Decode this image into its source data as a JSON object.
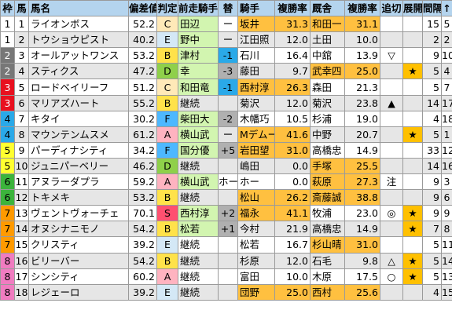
{
  "colors": {
    "header_bg": "#b4d4ee",
    "zebra_bg": "#e6e6e6",
    "frame_1": "#ffffff",
    "frame_2": "#777777",
    "frame_3": "#e8101f",
    "frame_4": "#2aa9e8",
    "frame_5": "#ffff30",
    "frame_6": "#3cb43c",
    "frame_7": "#ff9a00",
    "frame_8": "#f07cc0",
    "rank_S": "#ff5070",
    "rank_A": "#ffb3c0",
    "rank_B": "#ffe24a",
    "rank_C": "#ffe9b8",
    "rank_D": "#8fd04a",
    "rank_E": "#d4e8f6",
    "rank_F": "#4db8ff",
    "jockey_change": "#d2f5b0",
    "rate_highlight": "#ffc040",
    "diff_blue": "#2aa9e8",
    "diff_gray": "#b0b0b0",
    "rate_cyan": "#4fd2f2",
    "rate_pink": "#ff9ee6",
    "rate_orange": "#ffc040",
    "star_bg": "#ffc000",
    "yellow": "#ffff00"
  },
  "header": {
    "frame": "枠",
    "num": "馬",
    "horse": "馬名",
    "dev": "偏差値",
    "rank": "判定",
    "prev_jockey": "前走騎手",
    "change": "替",
    "jockey": "騎手",
    "jockey_rate": "複勝率",
    "trainer": "厩舎",
    "trainer_rate": "複勝率",
    "chase": "追切",
    "dev2": "展開",
    "interval": "間隔",
    "arrow": "↑"
  },
  "rows": [
    {
      "frame": "1",
      "num": "1",
      "horse": "ライオンボス",
      "dev": "52.2",
      "rank": "C",
      "prev": "田辺",
      "chg": "ー",
      "jockey": "坂井",
      "jrate": "31.3",
      "trainer": "和田一",
      "trate": "31.1",
      "chase": "",
      "dev2": "",
      "interval": "15",
      "arrow": "5"
    },
    {
      "frame": "1",
      "num": "2",
      "horse": "トウショウピスト",
      "dev": "40.2",
      "rank": "E",
      "prev": "野中",
      "chg": "ー",
      "jockey": "江田照",
      "jrate": "12.0",
      "trainer": "土田",
      "trate": "10.0",
      "chase": "",
      "dev2": "",
      "interval": "2",
      "arrow": "2"
    },
    {
      "frame": "2",
      "num": "3",
      "horse": "オールアットワンス",
      "dev": "53.2",
      "rank": "B",
      "prev": "津村",
      "chg": "-1",
      "jockey": "石川",
      "jrate": "16.4",
      "trainer": "中舘",
      "trate": "13.9",
      "chase": "▽",
      "dev2": "",
      "interval": "9",
      "arrow": "10"
    },
    {
      "frame": "2",
      "num": "4",
      "horse": "スティクス",
      "dev": "47.2",
      "rank": "D",
      "prev": "幸",
      "chg": "-3",
      "jockey": "藤田",
      "jrate": "9.7",
      "trainer": "武幸四",
      "trate": "25.0",
      "chase": "",
      "dev2": "★",
      "interval": "5",
      "arrow": "4"
    },
    {
      "frame": "3",
      "num": "5",
      "horse": "ロードベイリーフ",
      "dev": "51.2",
      "rank": "C",
      "prev": "和田竜",
      "chg": "-1",
      "jockey": "西村淳",
      "jrate": "26.3",
      "trainer": "森田",
      "trate": "21.3",
      "chase": "",
      "dev2": "",
      "interval": "5",
      "arrow": "7"
    },
    {
      "frame": "3",
      "num": "6",
      "horse": "マリアズハート",
      "dev": "55.2",
      "rank": "B",
      "prev": "継続",
      "chg": "",
      "jockey": "菊沢",
      "jrate": "12.0",
      "trainer": "菊沢",
      "trate": "23.8",
      "chase": "▲",
      "dev2": "",
      "interval": "14",
      "arrow": "17"
    },
    {
      "frame": "4",
      "num": "7",
      "horse": "キタイ",
      "dev": "30.2",
      "rank": "F",
      "prev": "柴田大",
      "chg": "-2",
      "jockey": "木幡巧",
      "jrate": "10.5",
      "trainer": "杉浦",
      "trate": "19.0",
      "chase": "",
      "dev2": "",
      "interval": "4",
      "arrow": "18"
    },
    {
      "frame": "4",
      "num": "8",
      "horse": "マウンテンムスメ",
      "dev": "61.2",
      "rank": "A",
      "prev": "横山武",
      "chg": "ー",
      "jockey": "Mデムーロ",
      "jrate": "41.6",
      "trainer": "中野",
      "trate": "20.7",
      "chase": "",
      "dev2": "★",
      "interval": "5",
      "arrow": "1"
    },
    {
      "frame": "5",
      "num": "9",
      "horse": "パーディナシティ",
      "dev": "34.2",
      "rank": "F",
      "prev": "国分優",
      "chg": "+5",
      "jockey": "岩田望",
      "jrate": "31.0",
      "trainer": "高橋忠",
      "trate": "14.9",
      "chase": "",
      "dev2": "",
      "interval": "33",
      "arrow": "12"
    },
    {
      "frame": "5",
      "num": "10",
      "horse": "ジュニパーベリー",
      "dev": "46.2",
      "rank": "D",
      "prev": "継続",
      "chg": "",
      "jockey": "嶋田",
      "jrate": "0.0",
      "trainer": "手塚",
      "trate": "25.5",
      "chase": "",
      "dev2": "",
      "interval": "14",
      "arrow": "16"
    },
    {
      "frame": "6",
      "num": "11",
      "horse": "アヌラーダプラ",
      "dev": "59.2",
      "rank": "A",
      "prev": "横山武",
      "chg": "ホー",
      "jockey": "ホー",
      "jrate": "0.0",
      "trainer": "萩原",
      "trate": "27.3",
      "chase": "注",
      "dev2": "",
      "interval": "9",
      "arrow": "3"
    },
    {
      "frame": "6",
      "num": "12",
      "horse": "トキメキ",
      "dev": "53.2",
      "rank": "B",
      "prev": "継続",
      "chg": "",
      "jockey": "松山",
      "jrate": "26.2",
      "trainer": "斎藤誠",
      "trate": "38.8",
      "chase": "",
      "dev2": "",
      "interval": "9",
      "arrow": "6"
    },
    {
      "frame": "7",
      "num": "13",
      "horse": "ヴェントヴォーチェ",
      "dev": "70.1",
      "rank": "S",
      "prev": "西村淳",
      "chg": "+2",
      "jockey": "福永",
      "jrate": "41.1",
      "trainer": "牧浦",
      "trate": "23.0",
      "chase": "◎",
      "dev2": "★",
      "interval": "9",
      "arrow": "9"
    },
    {
      "frame": "7",
      "num": "14",
      "horse": "オヌシナニモノ",
      "dev": "54.2",
      "rank": "B",
      "prev": "松若",
      "chg": "+1",
      "jockey": "今村",
      "jrate": "21.9",
      "trainer": "高橋忠",
      "trate": "14.9",
      "chase": "",
      "dev2": "★",
      "interval": "7",
      "arrow": "8"
    },
    {
      "frame": "7",
      "num": "15",
      "horse": "クリスティ",
      "dev": "39.2",
      "rank": "E",
      "prev": "継続",
      "chg": "",
      "jockey": "松若",
      "jrate": "16.7",
      "trainer": "杉山晴",
      "trate": "31.0",
      "chase": "",
      "dev2": "",
      "interval": "5",
      "arrow": "11"
    },
    {
      "frame": "8",
      "num": "16",
      "horse": "ビリーバー",
      "dev": "54.2",
      "rank": "B",
      "prev": "継続",
      "chg": "",
      "jockey": "杉原",
      "jrate": "12.0",
      "trainer": "石毛",
      "trate": "9.8",
      "chase": "△",
      "dev2": "★",
      "interval": "5",
      "arrow": "14"
    },
    {
      "frame": "8",
      "num": "17",
      "horse": "シンシティ",
      "dev": "60.2",
      "rank": "A",
      "prev": "継続",
      "chg": "",
      "jockey": "富田",
      "jrate": "10.0",
      "trainer": "木原",
      "trate": "17.5",
      "chase": "○",
      "dev2": "★",
      "interval": "5",
      "arrow": "13"
    },
    {
      "frame": "8",
      "num": "18",
      "horse": "レジェーロ",
      "dev": "39.2",
      "rank": "E",
      "prev": "継続",
      "chg": "",
      "jockey": "団野",
      "jrate": "25.0",
      "trainer": "西村",
      "trate": "25.6",
      "chase": "",
      "dev2": "",
      "interval": "4",
      "arrow": "15"
    }
  ]
}
